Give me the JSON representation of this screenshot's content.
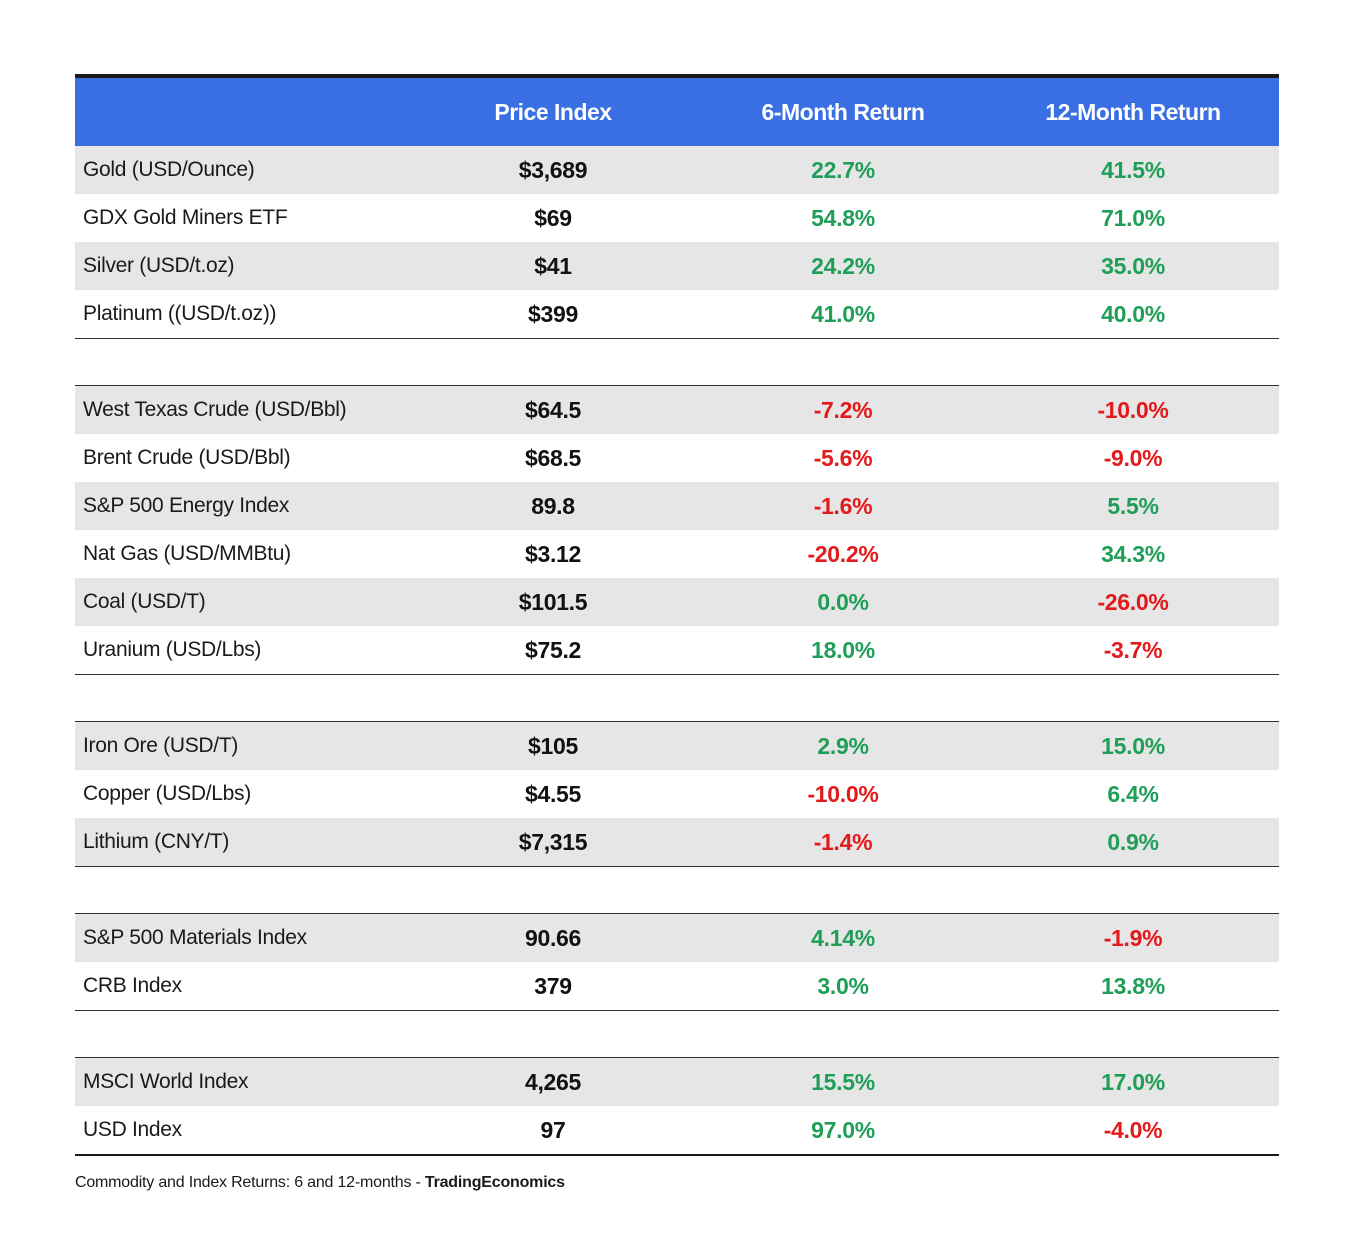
{
  "header": {
    "price_label": "Price Index",
    "six_month_label": "6-Month Return",
    "twelve_month_label": "12-Month Return"
  },
  "groups": [
    {
      "rows": [
        {
          "name": "Gold (USD/Ounce)",
          "price": "$3,689",
          "six": "22.7%",
          "twelve": "41.5%"
        },
        {
          "name": "GDX Gold Miners ETF",
          "price": "$69",
          "six": "54.8%",
          "twelve": "71.0%"
        },
        {
          "name": "Silver (USD/t.oz)",
          "price": "$41",
          "six": "24.2%",
          "twelve": "35.0%"
        },
        {
          "name": "Platinum ((USD/t.oz))",
          "price": "$399",
          "six": "41.0%",
          "twelve": "40.0%"
        }
      ]
    },
    {
      "rows": [
        {
          "name": "West Texas Crude (USD/Bbl)",
          "price": "$64.5",
          "six": "-7.2%",
          "twelve": "-10.0%"
        },
        {
          "name": "Brent Crude (USD/Bbl)",
          "price": "$68.5",
          "six": "-5.6%",
          "twelve": "-9.0%"
        },
        {
          "name": "S&P 500 Energy Index",
          "price": "89.8",
          "six": "-1.6%",
          "twelve": "5.5%"
        },
        {
          "name": "Nat Gas (USD/MMBtu)",
          "price": "$3.12",
          "six": "-20.2%",
          "twelve": "34.3%"
        },
        {
          "name": "Coal (USD/T)",
          "price": "$101.5",
          "six": "0.0%",
          "twelve": "-26.0%"
        },
        {
          "name": "Uranium (USD/Lbs)",
          "price": "$75.2",
          "six": "18.0%",
          "twelve": "-3.7%"
        }
      ]
    },
    {
      "rows": [
        {
          "name": "Iron Ore (USD/T)",
          "price": "$105",
          "six": "2.9%",
          "twelve": "15.0%"
        },
        {
          "name": "Copper (USD/Lbs)",
          "price": "$4.55",
          "six": "-10.0%",
          "twelve": "6.4%"
        },
        {
          "name": "Lithium (CNY/T)",
          "price": "$7,315",
          "six": "-1.4%",
          "twelve": "0.9%"
        }
      ]
    },
    {
      "rows": [
        {
          "name": "S&P 500 Materials Index",
          "price": "90.66",
          "six": "4.14%",
          "twelve": "-1.9%"
        },
        {
          "name": "CRB Index",
          "price": "379",
          "six": "3.0%",
          "twelve": "13.8%"
        }
      ]
    },
    {
      "rows": [
        {
          "name": "MSCI World Index",
          "price": "4,265",
          "six": "15.5%",
          "twelve": "17.0%"
        },
        {
          "name": "USD Index",
          "price": "97",
          "six": "97.0%",
          "twelve": "-4.0%"
        }
      ]
    }
  ],
  "caption": {
    "text": "Commodity and Index Returns: 6 and 12-months - ",
    "source": "TradingEconomics"
  },
  "colors": {
    "header_bg": "#3a6fe4",
    "positive": "#1e9e57",
    "negative": "#e3191b",
    "row_shade": "#e6e6e6"
  }
}
